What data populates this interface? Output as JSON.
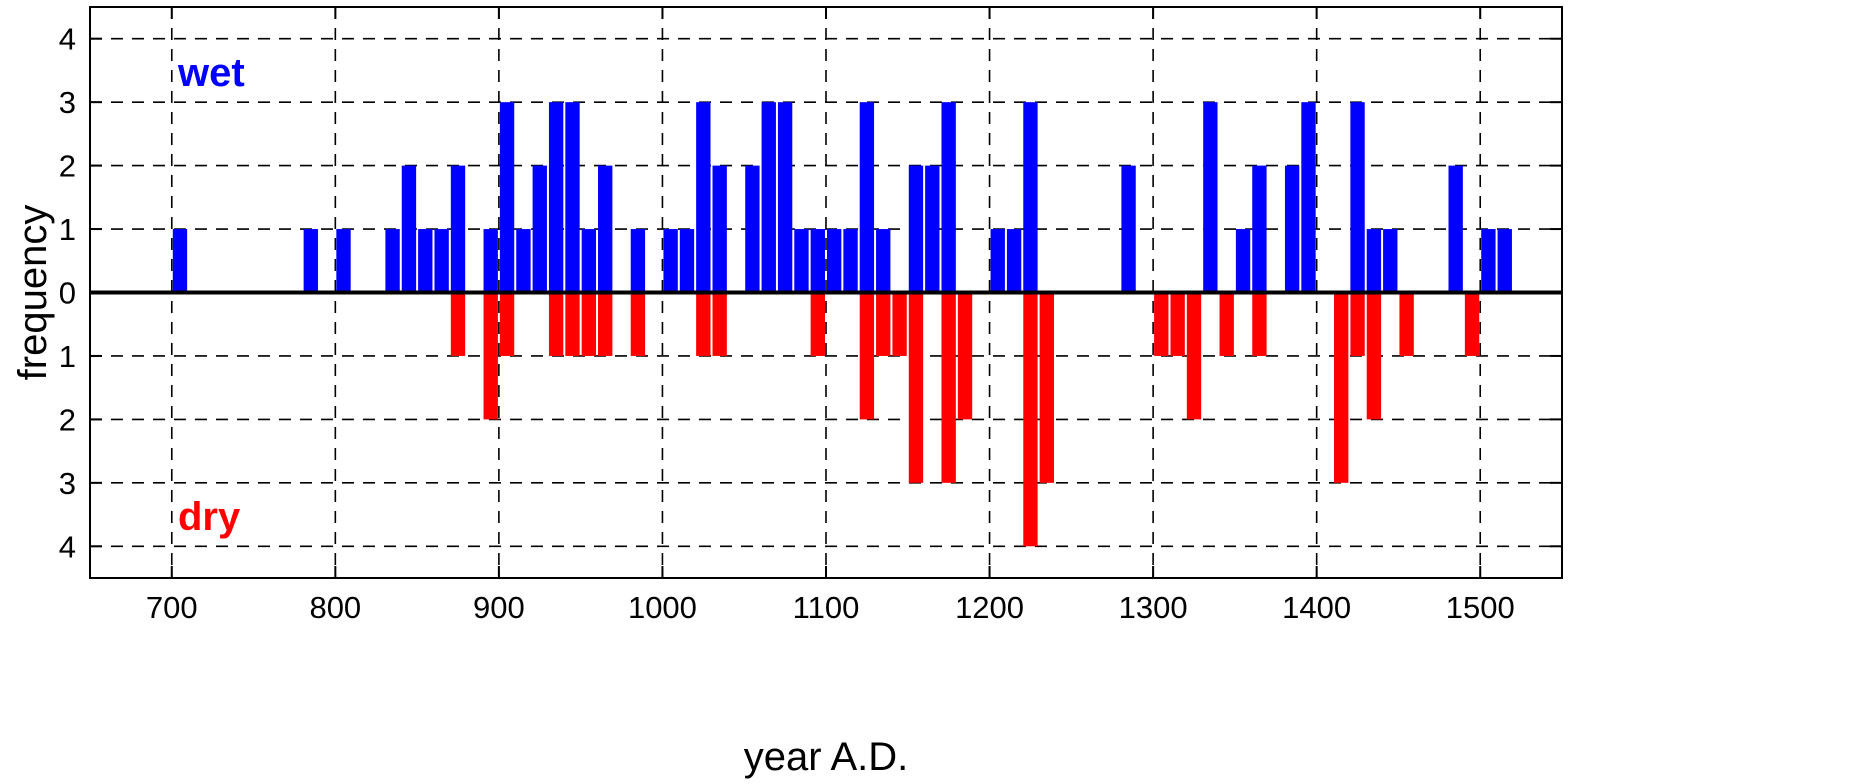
{
  "chart_data": {
    "type": "bar",
    "title": "",
    "xlabel": "year A.D.",
    "ylabel": "frequency",
    "xlim": [
      650,
      1550
    ],
    "ylim": [
      -4.5,
      4.5
    ],
    "grid": true,
    "bin_width": 10,
    "x_ticks": [
      700,
      800,
      900,
      1000,
      1100,
      1200,
      1300,
      1400,
      1500
    ],
    "y_ticks": [
      {
        "value": 4,
        "label": "4"
      },
      {
        "value": 3,
        "label": "3"
      },
      {
        "value": 2,
        "label": "2"
      },
      {
        "value": 1,
        "label": "1"
      },
      {
        "value": 0,
        "label": "0"
      },
      {
        "value": -1,
        "label": "1"
      },
      {
        "value": -2,
        "label": "2"
      },
      {
        "value": -3,
        "label": "3"
      },
      {
        "value": -4,
        "label": "4"
      }
    ],
    "annotations": {
      "wet": "wet",
      "dry": "dry"
    },
    "series": [
      {
        "name": "wet",
        "color": "#0000ff",
        "x": [
          705,
          785,
          805,
          835,
          845,
          855,
          865,
          875,
          895,
          905,
          915,
          925,
          935,
          945,
          955,
          965,
          985,
          1005,
          1015,
          1025,
          1035,
          1055,
          1065,
          1075,
          1085,
          1095,
          1105,
          1115,
          1125,
          1135,
          1155,
          1165,
          1175,
          1205,
          1215,
          1225,
          1285,
          1335,
          1355,
          1365,
          1385,
          1395,
          1425,
          1435,
          1445,
          1485,
          1505,
          1515
        ],
        "values": [
          1,
          1,
          1,
          1,
          2,
          1,
          1,
          2,
          1,
          3,
          1,
          2,
          3,
          3,
          1,
          2,
          1,
          1,
          1,
          3,
          2,
          2,
          3,
          3,
          1,
          1,
          1,
          1,
          3,
          1,
          2,
          2,
          3,
          1,
          1,
          3,
          2,
          3,
          1,
          2,
          2,
          3,
          3,
          1,
          1,
          2,
          1,
          1
        ]
      },
      {
        "name": "dry",
        "color": "#ff0000",
        "x": [
          875,
          895,
          905,
          935,
          945,
          955,
          965,
          985,
          1025,
          1035,
          1095,
          1125,
          1135,
          1145,
          1155,
          1175,
          1185,
          1225,
          1235,
          1305,
          1315,
          1325,
          1345,
          1365,
          1415,
          1425,
          1435,
          1455,
          1495
        ],
        "values": [
          1,
          2,
          1,
          1,
          1,
          1,
          1,
          1,
          1,
          1,
          1,
          2,
          1,
          1,
          3,
          3,
          2,
          4,
          3,
          1,
          1,
          2,
          1,
          1,
          3,
          1,
          2,
          1,
          1
        ]
      }
    ]
  }
}
